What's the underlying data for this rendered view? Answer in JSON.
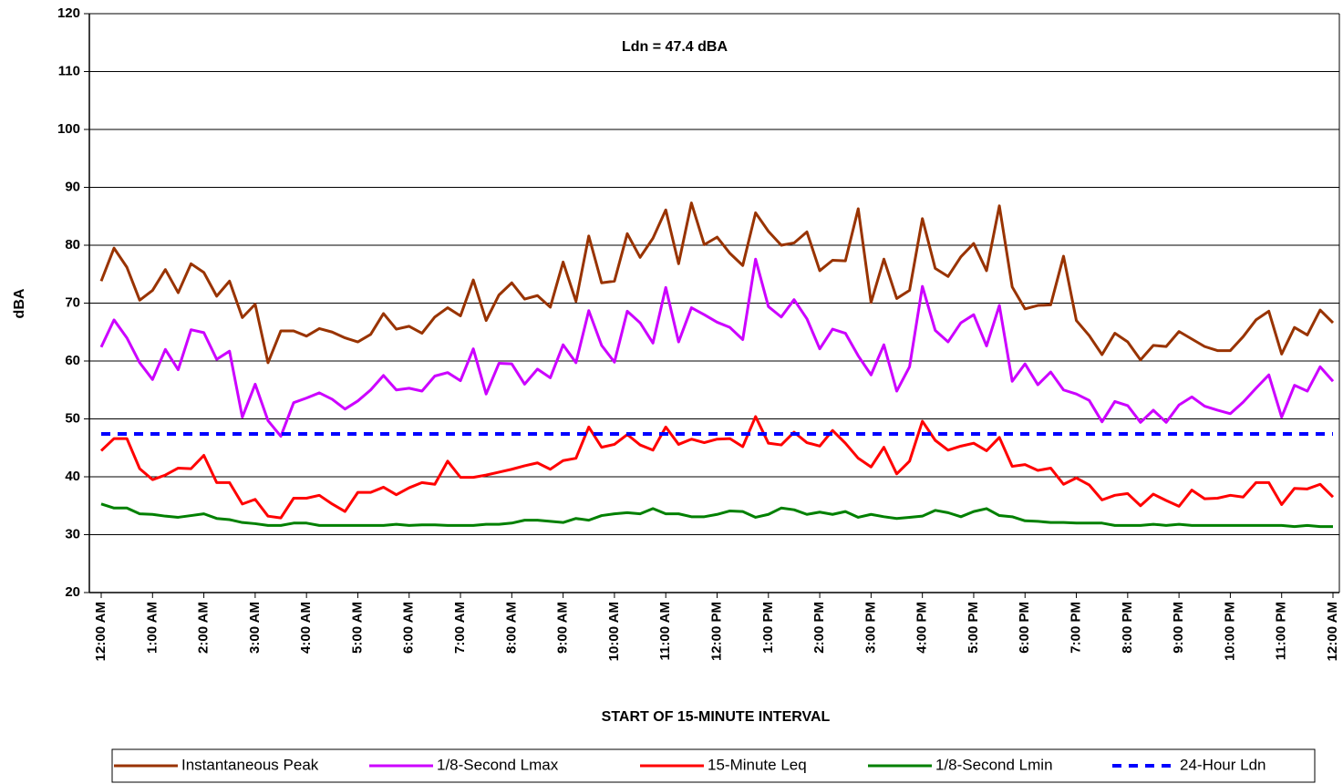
{
  "chart_data": {
    "type": "line",
    "annotation": "Ldn = 47.4 dBA",
    "x_label": "START OF 15-MINUTE INTERVAL",
    "y_label": "dBA",
    "ylim": [
      20,
      120
    ],
    "yticks": [
      20,
      30,
      40,
      50,
      60,
      70,
      80,
      90,
      100,
      110,
      120
    ],
    "grid": true,
    "legend": "bottom",
    "categories": [
      "12:00 AM",
      null,
      null,
      null,
      "1:00 AM",
      null,
      null,
      null,
      "2:00 AM",
      null,
      null,
      null,
      "3:00 AM",
      null,
      null,
      null,
      "4:00 AM",
      null,
      null,
      null,
      "5:00 AM",
      null,
      null,
      null,
      "6:00 AM",
      null,
      null,
      null,
      "7:00 AM",
      null,
      null,
      null,
      "8:00 AM",
      null,
      null,
      null,
      "9:00 AM",
      null,
      null,
      null,
      "10:00 AM",
      null,
      null,
      null,
      "11:00 AM",
      null,
      null,
      null,
      "12:00 PM",
      null,
      null,
      null,
      "1:00 PM",
      null,
      null,
      null,
      "2:00 PM",
      null,
      null,
      null,
      "3:00 PM",
      null,
      null,
      null,
      "4:00 PM",
      null,
      null,
      null,
      "5:00 PM",
      null,
      null,
      null,
      "6:00 PM",
      null,
      null,
      null,
      "7:00 PM",
      null,
      null,
      null,
      "8:00 PM",
      null,
      null,
      null,
      "9:00 PM",
      null,
      null,
      null,
      "10:00 PM",
      null,
      null,
      null,
      "11:00 PM",
      null,
      null,
      null,
      "12:00 AM"
    ],
    "series": [
      {
        "name": "Instantaneous Peak",
        "color": "#993300",
        "values": [
          73.8,
          79.5,
          76.2,
          70.5,
          72.2,
          75.8,
          71.8,
          76.8,
          75.3,
          71.2,
          73.8,
          67.5,
          69.8,
          59.7,
          65.2,
          65.2,
          64.3,
          65.6,
          65.0,
          64.0,
          63.3,
          64.6,
          68.2,
          65.5,
          66.0,
          64.8,
          67.6,
          69.2,
          67.8,
          74.0,
          67.0,
          71.4,
          73.5,
          70.7,
          71.3,
          69.3,
          77.1,
          70.3,
          81.6,
          73.5,
          73.8,
          82.0,
          77.9,
          81.2,
          86.1,
          76.8,
          87.3,
          80.1,
          81.4,
          78.6,
          76.5,
          85.6,
          82.4,
          80.0,
          80.4,
          82.3,
          75.6,
          77.4,
          77.3,
          86.3,
          70.1,
          77.6,
          70.8,
          72.2,
          84.6,
          76.0,
          74.6,
          78.0,
          80.3,
          75.6,
          86.8,
          72.8,
          69.0,
          69.6,
          69.7,
          78.1,
          67.0,
          64.4,
          61.1,
          64.8,
          63.3,
          60.2,
          62.7,
          62.5,
          65.1,
          63.8,
          62.5,
          61.8,
          61.8,
          64.2,
          67.1,
          68.6,
          61.2,
          65.8,
          64.5,
          68.8,
          66.6
        ]
      },
      {
        "name": "1/8-Second Lmax",
        "color": "#cc00ff",
        "values": [
          62.4,
          67.1,
          64.0,
          59.7,
          56.8,
          62.0,
          58.5,
          65.4,
          64.9,
          60.3,
          61.7,
          50.3,
          56.0,
          49.7,
          47.0,
          52.8,
          53.6,
          54.5,
          53.4,
          51.7,
          53.1,
          55.0,
          57.5,
          55.0,
          55.3,
          54.8,
          57.4,
          58.0,
          56.6,
          62.1,
          54.3,
          59.6,
          59.5,
          56.0,
          58.6,
          57.1,
          62.8,
          59.7,
          68.7,
          62.7,
          59.8,
          68.6,
          66.6,
          63.1,
          72.7,
          63.3,
          69.2,
          68.0,
          66.7,
          65.8,
          63.7,
          77.6,
          69.4,
          67.6,
          70.6,
          67.3,
          62.1,
          65.5,
          64.8,
          60.9,
          57.6,
          62.8,
          54.8,
          59.0,
          72.9,
          65.3,
          63.3,
          66.6,
          68.0,
          62.6,
          69.6,
          56.5,
          59.5,
          55.9,
          58.1,
          55.0,
          54.3,
          53.2,
          49.5,
          53.0,
          52.3,
          49.4,
          51.5,
          49.4,
          52.4,
          53.8,
          52.2,
          51.5,
          50.9,
          52.9,
          55.3,
          57.6,
          50.3,
          55.8,
          54.8,
          59.0,
          56.5
        ]
      },
      {
        "name": "15-Minute Leq",
        "color": "#ff0000",
        "values": [
          44.5,
          46.6,
          46.6,
          41.4,
          39.5,
          40.3,
          41.5,
          41.4,
          43.7,
          39.0,
          39.0,
          35.3,
          36.1,
          33.2,
          32.9,
          36.3,
          36.3,
          36.8,
          35.3,
          34.0,
          37.3,
          37.3,
          38.2,
          36.9,
          38.1,
          39.0,
          38.7,
          42.7,
          39.9,
          39.9,
          40.3,
          40.8,
          41.3,
          41.9,
          42.4,
          41.3,
          42.8,
          43.2,
          48.6,
          45.1,
          45.6,
          47.3,
          45.5,
          44.6,
          48.6,
          45.6,
          46.5,
          45.9,
          46.5,
          46.6,
          45.2,
          50.4,
          45.8,
          45.5,
          47.7,
          45.9,
          45.3,
          48.0,
          45.8,
          43.2,
          41.7,
          45.1,
          40.5,
          42.7,
          49.6,
          46.3,
          44.6,
          45.3,
          45.8,
          44.5,
          46.8,
          41.8,
          42.1,
          41.1,
          41.5,
          38.7,
          39.8,
          38.6,
          36.0,
          36.8,
          37.1,
          35.0,
          37.0,
          35.9,
          34.9,
          37.7,
          36.2,
          36.3,
          36.8,
          36.5,
          39.0,
          39.0,
          35.2,
          38.0,
          37.9,
          38.7,
          36.5
        ]
      },
      {
        "name": "1/8-Second Lmin",
        "color": "#008000",
        "values": [
          35.3,
          34.6,
          34.6,
          33.6,
          33.5,
          33.2,
          33.0,
          33.3,
          33.6,
          32.8,
          32.6,
          32.1,
          31.9,
          31.6,
          31.6,
          32.0,
          32.0,
          31.6,
          31.6,
          31.6,
          31.6,
          31.6,
          31.6,
          31.8,
          31.6,
          31.7,
          31.7,
          31.6,
          31.6,
          31.6,
          31.8,
          31.8,
          32.0,
          32.5,
          32.5,
          32.3,
          32.1,
          32.8,
          32.5,
          33.3,
          33.6,
          33.8,
          33.6,
          34.5,
          33.6,
          33.6,
          33.1,
          33.1,
          33.5,
          34.1,
          34.0,
          33.0,
          33.5,
          34.6,
          34.3,
          33.5,
          33.9,
          33.5,
          34.0,
          33.0,
          33.5,
          33.1,
          32.8,
          33.0,
          33.2,
          34.2,
          33.8,
          33.1,
          34.0,
          34.5,
          33.3,
          33.1,
          32.4,
          32.3,
          32.1,
          32.1,
          32.0,
          32.0,
          32.0,
          31.6,
          31.6,
          31.6,
          31.8,
          31.6,
          31.8,
          31.6,
          31.6,
          31.6,
          31.6,
          31.6,
          31.6,
          31.6,
          31.6,
          31.4,
          31.6,
          31.4,
          31.4
        ]
      },
      {
        "name": "24-Hour Ldn",
        "color": "#0000ff",
        "style": "dashed",
        "values": [
          47.4,
          47.4,
          47.4,
          47.4,
          47.4,
          47.4,
          47.4,
          47.4,
          47.4,
          47.4,
          47.4,
          47.4,
          47.4,
          47.4,
          47.4,
          47.4,
          47.4,
          47.4,
          47.4,
          47.4,
          47.4,
          47.4,
          47.4,
          47.4,
          47.4,
          47.4,
          47.4,
          47.4,
          47.4,
          47.4,
          47.4,
          47.4,
          47.4,
          47.4,
          47.4,
          47.4,
          47.4,
          47.4,
          47.4,
          47.4,
          47.4,
          47.4,
          47.4,
          47.4,
          47.4,
          47.4,
          47.4,
          47.4,
          47.4,
          47.4,
          47.4,
          47.4,
          47.4,
          47.4,
          47.4,
          47.4,
          47.4,
          47.4,
          47.4,
          47.4,
          47.4,
          47.4,
          47.4,
          47.4,
          47.4,
          47.4,
          47.4,
          47.4,
          47.4,
          47.4,
          47.4,
          47.4,
          47.4,
          47.4,
          47.4,
          47.4,
          47.4,
          47.4,
          47.4,
          47.4,
          47.4,
          47.4,
          47.4,
          47.4,
          47.4,
          47.4,
          47.4,
          47.4,
          47.4,
          47.4,
          47.4,
          47.4,
          47.4,
          47.4,
          47.4,
          47.4,
          47.4
        ]
      }
    ]
  }
}
